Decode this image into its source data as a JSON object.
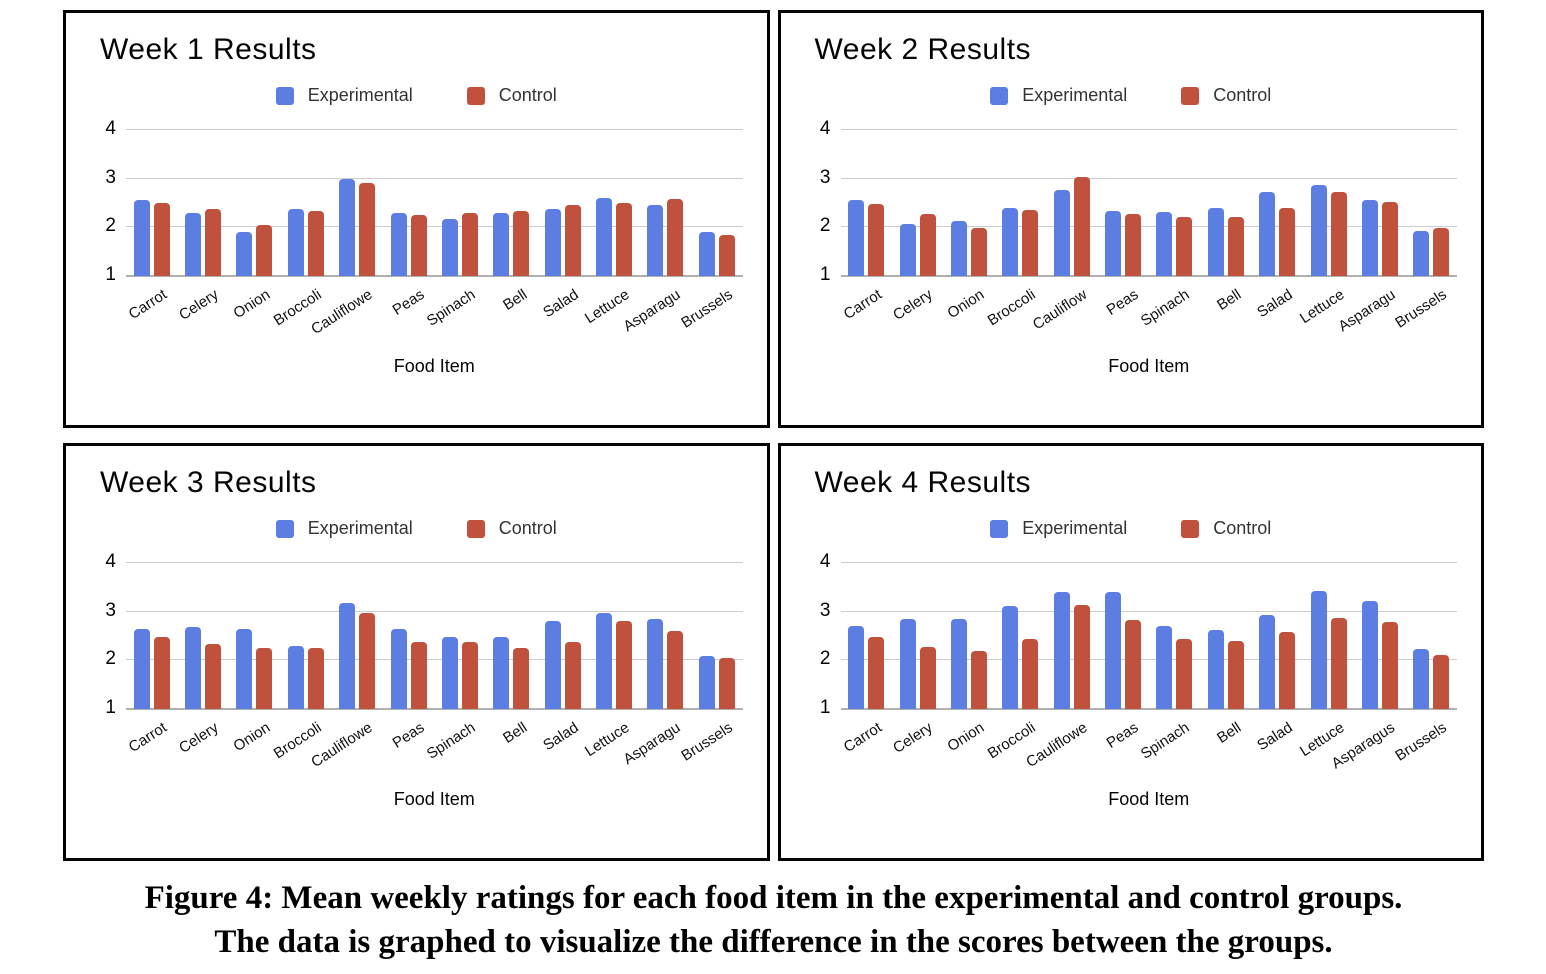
{
  "figure": {
    "caption_line1": "Figure 4: Mean weekly ratings for each food item in the experimental and control groups.",
    "caption_line2": "The data is graphed to visualize the difference in the scores between the groups."
  },
  "colors": {
    "experimental": "#5C7EE2",
    "control": "#C0513D",
    "gridline": "#CCCCCC",
    "axis_line": "#B0B0B0"
  },
  "chart_data": [
    {
      "type": "bar",
      "title": "Week 1 Results",
      "xlabel": "Food Item",
      "ylabel": "",
      "ylim": [
        1,
        4
      ],
      "yticks": [
        1,
        2,
        3,
        4
      ],
      "grid": true,
      "legend_position": "top",
      "categories": [
        "Carrot",
        "Celery",
        "Onion",
        "Broccoli",
        "Cauliflowe",
        "Peas",
        "Spinach",
        "Bell",
        "Salad",
        "Lettuce",
        "Asparagu",
        "Brussels"
      ],
      "series": [
        {
          "name": "Experimental",
          "color": "#5C7EE2",
          "values": [
            2.57,
            2.3,
            1.9,
            2.38,
            3.0,
            2.3,
            2.18,
            2.3,
            2.38,
            2.6,
            2.45,
            1.9
          ]
        },
        {
          "name": "Control",
          "color": "#C0513D",
          "values": [
            2.5,
            2.38,
            2.05,
            2.34,
            2.92,
            2.25,
            2.3,
            2.33,
            2.45,
            2.5,
            2.58,
            1.85
          ]
        }
      ]
    },
    {
      "type": "bar",
      "title": "Week 2 Results",
      "xlabel": "Food Item",
      "ylabel": "",
      "ylim": [
        1,
        4
      ],
      "yticks": [
        1,
        2,
        3,
        4
      ],
      "grid": true,
      "legend_position": "top",
      "categories": [
        "Carrot",
        "Celery",
        "Onion",
        "Broccoli",
        "Cauliflow",
        "Peas",
        "Spinach",
        "Bell",
        "Salad",
        "Lettuce",
        "Asparagu",
        "Brussels"
      ],
      "series": [
        {
          "name": "Experimental",
          "color": "#5C7EE2",
          "values": [
            2.56,
            2.06,
            2.13,
            2.39,
            2.77,
            2.34,
            2.31,
            2.39,
            2.72,
            2.86,
            2.56,
            1.93
          ]
        },
        {
          "name": "Control",
          "color": "#C0513D",
          "values": [
            2.47,
            2.27,
            1.98,
            2.36,
            3.04,
            2.27,
            2.22,
            2.22,
            2.4,
            2.73,
            2.52,
            1.98
          ]
        }
      ]
    },
    {
      "type": "bar",
      "title": "Week 3 Results",
      "xlabel": "Food Item",
      "ylabel": "",
      "ylim": [
        1,
        4
      ],
      "yticks": [
        1,
        2,
        3,
        4
      ],
      "grid": true,
      "legend_position": "top",
      "categories": [
        "Carrot",
        "Celery",
        "Onion",
        "Broccoli",
        "Cauliflowe",
        "Peas",
        "Spinach",
        "Bell",
        "Salad",
        "Lettuce",
        "Asparagu",
        "Brussels"
      ],
      "series": [
        {
          "name": "Experimental",
          "color": "#5C7EE2",
          "values": [
            2.64,
            2.69,
            2.64,
            2.29,
            3.17,
            2.64,
            2.49,
            2.49,
            2.81,
            2.97,
            2.85,
            2.09
          ]
        },
        {
          "name": "Control",
          "color": "#C0513D",
          "values": [
            2.49,
            2.33,
            2.25,
            2.25,
            2.97,
            2.38,
            2.37,
            2.25,
            2.37,
            2.81,
            2.61,
            2.04
          ]
        }
      ]
    },
    {
      "type": "bar",
      "title": "Week 4 Results",
      "xlabel": "Food Item",
      "ylabel": "",
      "ylim": [
        1,
        4
      ],
      "yticks": [
        1,
        2,
        3,
        4
      ],
      "grid": true,
      "legend_position": "top",
      "categories": [
        "Carrot",
        "Celery",
        "Onion",
        "Broccoli",
        "Cauliflowe",
        "Peas",
        "Spinach",
        "Bell",
        "Salad",
        "Lettuce",
        "Asparagus",
        "Brussels"
      ],
      "series": [
        {
          "name": "Experimental",
          "color": "#5C7EE2",
          "values": [
            2.7,
            2.85,
            2.85,
            3.12,
            3.4,
            3.4,
            2.7,
            2.62,
            2.94,
            3.43,
            3.21,
            2.24
          ]
        },
        {
          "name": "Control",
          "color": "#C0513D",
          "values": [
            2.47,
            2.28,
            2.2,
            2.43,
            3.13,
            2.82,
            2.43,
            2.4,
            2.58,
            2.86,
            2.78,
            2.12
          ]
        }
      ]
    }
  ]
}
